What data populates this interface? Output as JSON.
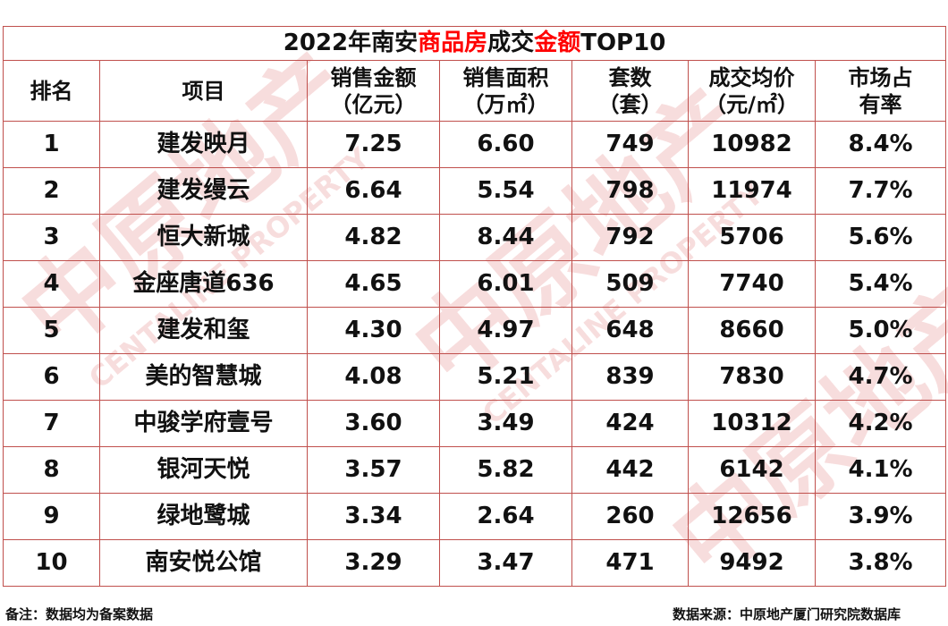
{
  "title": {
    "prefix": "2022年南安",
    "highlight1": "商品房",
    "middle": "成交",
    "highlight2": "金额",
    "suffix": "TOP10"
  },
  "columns": [
    {
      "line1": "排名",
      "line2": ""
    },
    {
      "line1": "项目",
      "line2": ""
    },
    {
      "line1": "销售金额",
      "line2": "（亿元）"
    },
    {
      "line1": "销售面积",
      "line2": "（万㎡）"
    },
    {
      "line1": "套数",
      "line2": "（套）"
    },
    {
      "line1": "成交均价",
      "line2": "（元/㎡）"
    },
    {
      "line1": "市场占",
      "line2": "有率"
    }
  ],
  "rows": [
    {
      "rank": "1",
      "project": "建发映月",
      "amount": "7.25",
      "area": "6.60",
      "units": "749",
      "price": "10982",
      "share": "8.4%"
    },
    {
      "rank": "2",
      "project": "建发缦云",
      "amount": "6.64",
      "area": "5.54",
      "units": "798",
      "price": "11974",
      "share": "7.7%"
    },
    {
      "rank": "3",
      "project": "恒大新城",
      "amount": "4.82",
      "area": "8.44",
      "units": "792",
      "price": "5706",
      "share": "5.6%"
    },
    {
      "rank": "4",
      "project": "金座唐道636",
      "amount": "4.65",
      "area": "6.01",
      "units": "509",
      "price": "7740",
      "share": "5.4%"
    },
    {
      "rank": "5",
      "project": "建发和玺",
      "amount": "4.30",
      "area": "4.97",
      "units": "648",
      "price": "8660",
      "share": "5.0%"
    },
    {
      "rank": "6",
      "project": "美的智慧城",
      "amount": "4.08",
      "area": "5.21",
      "units": "839",
      "price": "7830",
      "share": "4.7%"
    },
    {
      "rank": "7",
      "project": "中骏学府壹号",
      "amount": "3.60",
      "area": "3.49",
      "units": "424",
      "price": "10312",
      "share": "4.2%"
    },
    {
      "rank": "8",
      "project": "银河天悦",
      "amount": "3.57",
      "area": "5.82",
      "units": "442",
      "price": "6142",
      "share": "4.1%"
    },
    {
      "rank": "9",
      "project": "绿地鹭城",
      "amount": "3.34",
      "area": "2.64",
      "units": "260",
      "price": "12656",
      "share": "3.9%"
    },
    {
      "rank": "10",
      "project": "南安悦公馆",
      "amount": "3.29",
      "area": "3.47",
      "units": "471",
      "price": "9492",
      "share": "3.8%"
    }
  ],
  "footer": {
    "note": "备注：数据均为备案数据",
    "source": "数据来源：中原地产厦门研究院数据库"
  },
  "watermark": {
    "mark": "中原地产",
    "brand": "CENTALINE PROPERTY"
  },
  "colors": {
    "border": "#c0504d",
    "highlight": "#ff0000",
    "watermark": "#f3c8c8"
  }
}
